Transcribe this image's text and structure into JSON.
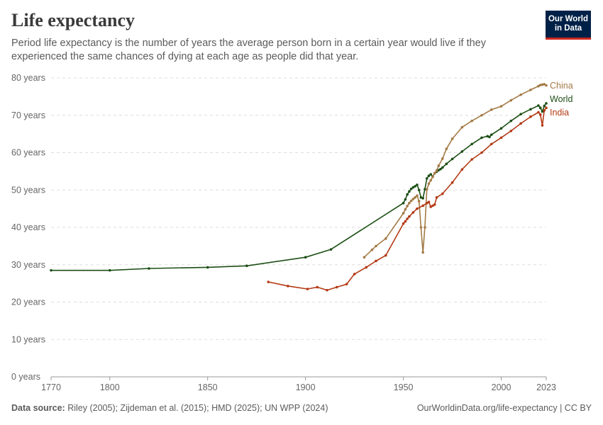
{
  "header": {
    "title": "Life expectancy",
    "subtitle": "Period life expectancy is the number of years the average person born in a certain year would live if they experienced the same chances of dying at each age as people did that year.",
    "logo_line1": "Our World",
    "logo_line2": "in Data"
  },
  "footer": {
    "source_label": "Data source:",
    "source_text": "Riley (2005); Zijdeman et al. (2015); HMD (2025); UN WPP (2024)",
    "link_text": "OurWorldinData.org/life-expectancy | CC BY"
  },
  "colors": {
    "world": "#1d4f16",
    "china": "#a37a46",
    "india": "#b33a15",
    "grid": "#dddddd",
    "axis_text": "#666666"
  },
  "chart_data": {
    "type": "line",
    "ylim": [
      0,
      80
    ],
    "xlim": [
      1770,
      2023
    ],
    "x_ticks": [
      1770,
      1800,
      1850,
      1900,
      1950,
      2000,
      2023
    ],
    "y_ticks": [
      {
        "value": 0,
        "label": "0 years"
      },
      {
        "value": 10,
        "label": "10 years"
      },
      {
        "value": 20,
        "label": "20 years"
      },
      {
        "value": 30,
        "label": "30 years"
      },
      {
        "value": 40,
        "label": "40 years"
      },
      {
        "value": 50,
        "label": "50 years"
      },
      {
        "value": 60,
        "label": "60 years"
      },
      {
        "value": 70,
        "label": "70 years"
      },
      {
        "value": 80,
        "label": "80 years"
      }
    ],
    "grid": "horizontal dashed",
    "legend": "right end labels",
    "series": [
      {
        "name": "World",
        "key": "world",
        "points": [
          [
            1770,
            28.5
          ],
          [
            1800,
            28.5
          ],
          [
            1820,
            29.0
          ],
          [
            1850,
            29.3
          ],
          [
            1870,
            29.7
          ],
          [
            1900,
            32.0
          ],
          [
            1913,
            34.1
          ],
          [
            1950,
            46.5
          ],
          [
            1951,
            47.5
          ],
          [
            1952,
            48.8
          ],
          [
            1953,
            49.6
          ],
          [
            1954,
            50.3
          ],
          [
            1955,
            50.7
          ],
          [
            1956,
            51.0
          ],
          [
            1957,
            51.4
          ],
          [
            1958,
            50.0
          ],
          [
            1959,
            48.0
          ],
          [
            1960,
            47.8
          ],
          [
            1961,
            50.2
          ],
          [
            1962,
            53.1
          ],
          [
            1963,
            53.8
          ],
          [
            1964,
            54.2
          ],
          [
            1965,
            53.6
          ],
          [
            1966,
            54.5
          ],
          [
            1967,
            54.9
          ],
          [
            1968,
            55.3
          ],
          [
            1969,
            55.6
          ],
          [
            1970,
            56.0
          ],
          [
            1972,
            57.0
          ],
          [
            1975,
            58.3
          ],
          [
            1980,
            60.3
          ],
          [
            1985,
            62.3
          ],
          [
            1990,
            64.0
          ],
          [
            1993,
            64.4
          ],
          [
            1994,
            64.2
          ],
          [
            1995,
            64.8
          ],
          [
            2000,
            66.5
          ],
          [
            2005,
            68.5
          ],
          [
            2010,
            70.3
          ],
          [
            2015,
            71.6
          ],
          [
            2019,
            72.6
          ],
          [
            2020,
            72.0
          ],
          [
            2021,
            71.0
          ],
          [
            2022,
            72.5
          ],
          [
            2023,
            73.2
          ]
        ]
      },
      {
        "name": "China",
        "key": "china",
        "points": [
          [
            1930,
            32.0
          ],
          [
            1934,
            34.0
          ],
          [
            1936,
            35.0
          ],
          [
            1941,
            37.0
          ],
          [
            1950,
            43.8
          ],
          [
            1951,
            44.8
          ],
          [
            1952,
            45.7
          ],
          [
            1953,
            46.5
          ],
          [
            1954,
            47.1
          ],
          [
            1955,
            47.6
          ],
          [
            1956,
            48.0
          ],
          [
            1957,
            48.5
          ],
          [
            1958,
            47.0
          ],
          [
            1959,
            40.0
          ],
          [
            1960,
            33.3
          ],
          [
            1961,
            40.0
          ],
          [
            1962,
            50.2
          ],
          [
            1963,
            51.7
          ],
          [
            1964,
            52.6
          ],
          [
            1965,
            53.5
          ],
          [
            1966,
            54.5
          ],
          [
            1967,
            55.2
          ],
          [
            1968,
            56.5
          ],
          [
            1970,
            58.4
          ],
          [
            1972,
            61.0
          ],
          [
            1975,
            63.7
          ],
          [
            1980,
            66.8
          ],
          [
            1985,
            68.5
          ],
          [
            1990,
            70.0
          ],
          [
            1995,
            71.5
          ],
          [
            2000,
            72.4
          ],
          [
            2005,
            74.0
          ],
          [
            2010,
            75.5
          ],
          [
            2015,
            76.8
          ],
          [
            2019,
            77.8
          ],
          [
            2020,
            78.1
          ],
          [
            2021,
            78.2
          ],
          [
            2022,
            78.3
          ],
          [
            2023,
            78.0
          ]
        ]
      },
      {
        "name": "India",
        "key": "india",
        "points": [
          [
            1881,
            25.4
          ],
          [
            1891,
            24.3
          ],
          [
            1901,
            23.5
          ],
          [
            1906,
            24.0
          ],
          [
            1911,
            23.2
          ],
          [
            1916,
            24.0
          ],
          [
            1921,
            24.8
          ],
          [
            1925,
            27.5
          ],
          [
            1931,
            29.3
          ],
          [
            1936,
            31.0
          ],
          [
            1941,
            32.5
          ],
          [
            1950,
            41.0
          ],
          [
            1951,
            41.6
          ],
          [
            1952,
            42.3
          ],
          [
            1953,
            42.9
          ],
          [
            1955,
            44.0
          ],
          [
            1957,
            45.0
          ],
          [
            1960,
            45.8
          ],
          [
            1962,
            46.5
          ],
          [
            1963,
            46.8
          ],
          [
            1964,
            45.5
          ],
          [
            1965,
            45.8
          ],
          [
            1966,
            46.1
          ],
          [
            1967,
            48.0
          ],
          [
            1970,
            49.0
          ],
          [
            1975,
            52.0
          ],
          [
            1980,
            55.5
          ],
          [
            1985,
            58.2
          ],
          [
            1990,
            60.0
          ],
          [
            1995,
            62.3
          ],
          [
            2000,
            64.0
          ],
          [
            2005,
            65.8
          ],
          [
            2010,
            67.8
          ],
          [
            2015,
            69.6
          ],
          [
            2019,
            70.8
          ],
          [
            2020,
            70.2
          ],
          [
            2021,
            67.3
          ],
          [
            2022,
            71.3
          ],
          [
            2023,
            72.0
          ]
        ]
      }
    ]
  }
}
